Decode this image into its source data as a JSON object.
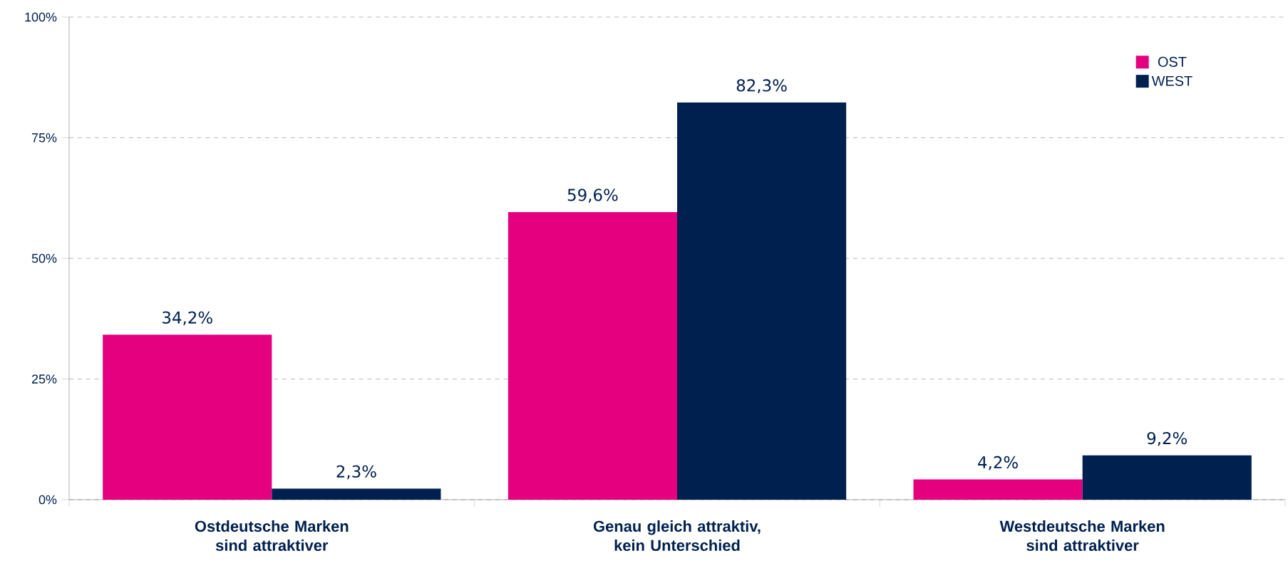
{
  "chart_data": {
    "type": "bar",
    "categories": [
      "Ostdeutsche Marken sind attraktiver",
      "Genau gleich attraktiv, kein Unterschied",
      "Westdeutsche Marken sind attraktiver"
    ],
    "series": [
      {
        "name": "OST",
        "color": "#e4007f",
        "values": [
          34.2,
          59.6,
          4.2
        ],
        "value_labels": [
          "34,2%",
          "59,6%",
          "4,2%"
        ]
      },
      {
        "name": "WEST",
        "color": "#002050",
        "values": [
          2.3,
          82.3,
          9.2
        ],
        "value_labels": [
          "2,3%",
          "82,3%",
          "9,2%"
        ]
      }
    ],
    "ylim": [
      0,
      100
    ],
    "yticks": [
      {
        "value": 0,
        "label": "0%"
      },
      {
        "value": 25,
        "label": "25%"
      },
      {
        "value": 50,
        "label": "50%"
      },
      {
        "value": 75,
        "label": "75%"
      },
      {
        "value": 100,
        "label": "100%"
      }
    ],
    "grid": "y",
    "legend": "top right"
  }
}
